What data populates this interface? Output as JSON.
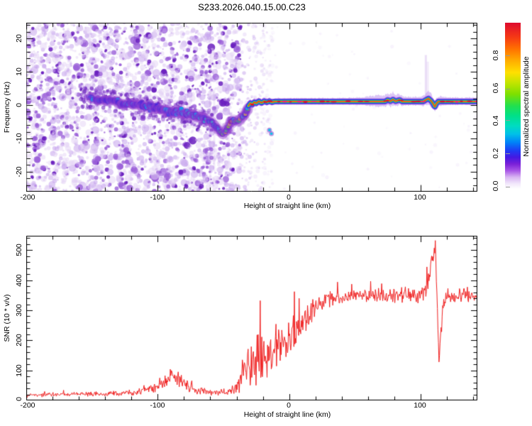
{
  "title": "S233.2026.040.15.00.C23",
  "top_panel": {
    "ylabel": "Frequency (Hz)",
    "xlabel": "Height of straight line (km)",
    "yticks": [
      "20",
      "10",
      "0",
      "-10",
      "-20"
    ],
    "xticks": [
      "-200",
      "-100",
      "0",
      "100"
    ]
  },
  "bottom_panel": {
    "ylabel": "SNR (10 * v/v)",
    "xlabel": "Height of straight line (km)",
    "yticks": [
      "0",
      "100",
      "200",
      "300",
      "400",
      "500"
    ],
    "xticks": [
      "-200",
      "-100",
      "0",
      "100"
    ]
  },
  "colorbar": {
    "label": "Normalized spectral amplitude",
    "ticks": [
      "0.0",
      "0.2",
      "0.4",
      "0.6",
      "0.8"
    ],
    "stops": [
      [
        0.0,
        "#ffffff"
      ],
      [
        0.03,
        "#f2e8fb"
      ],
      [
        0.07,
        "#d9b6f2"
      ],
      [
        0.11,
        "#a855e6"
      ],
      [
        0.15,
        "#7a20d8"
      ],
      [
        0.19,
        "#4418e2"
      ],
      [
        0.23,
        "#1f3cf4"
      ],
      [
        0.28,
        "#0083f8"
      ],
      [
        0.33,
        "#00c0e8"
      ],
      [
        0.38,
        "#00dcc0"
      ],
      [
        0.44,
        "#00e088"
      ],
      [
        0.5,
        "#22e04e"
      ],
      [
        0.57,
        "#7ee000"
      ],
      [
        0.64,
        "#c4e400"
      ],
      [
        0.7,
        "#ffe000"
      ],
      [
        0.77,
        "#ffae00"
      ],
      [
        0.84,
        "#ff7300"
      ],
      [
        0.91,
        "#f63b14"
      ],
      [
        1.0,
        "#de0a2e"
      ]
    ]
  },
  "chart_data": [
    {
      "type": "heatmap",
      "title": "Doppler spectrogram, normalized spectral amplitude",
      "xlabel": "Height of straight line (km)",
      "ylabel": "Frequency (Hz)",
      "x_range": [
        -200,
        143.2
      ],
      "y_range": [
        -26,
        24.7
      ],
      "x_major_ticks": [
        -200,
        -100,
        0,
        100
      ],
      "x_minor_step": 20,
      "y_major_ticks": [
        -20,
        -10,
        0,
        10,
        20
      ],
      "y_minor_step": 2,
      "noise_palette": [
        "#e3d2f6",
        "#c4a2ec",
        "#9a5fd8",
        "#6a1fbe"
      ],
      "noise_dense_to": -37,
      "noise_fade_to": -12,
      "streaks": [
        [
          -60,
          23,
          -25,
          0.1
        ],
        [
          -57,
          5,
          -20,
          0.12
        ],
        [
          -46,
          0,
          -18,
          0.1
        ],
        [
          104,
          15,
          2,
          0.2
        ],
        [
          105.5,
          13,
          1.5,
          0.12
        ]
      ],
      "ridge_path": [
        [
          -152,
          2.2
        ],
        [
          -146,
          1.6
        ],
        [
          -140,
          1.2
        ],
        [
          -134,
          1.4
        ],
        [
          -128,
          0.6
        ],
        [
          -122,
          0.3
        ],
        [
          -116,
          0.1
        ],
        [
          -110,
          -0.4
        ],
        [
          -104,
          -0.8
        ],
        [
          -98,
          -1.3
        ],
        [
          -92,
          -1.7
        ],
        [
          -86,
          -1.9
        ],
        [
          -80,
          -2.4
        ],
        [
          -74,
          -3.0
        ],
        [
          -68,
          -3.7
        ],
        [
          -62,
          -4.4
        ],
        [
          -58,
          -5.4
        ],
        [
          -55,
          -6.8
        ],
        [
          -52,
          -8.0
        ],
        [
          -50,
          -8.6
        ],
        [
          -48,
          -7.6
        ],
        [
          -46,
          -6.2
        ],
        [
          -44,
          -4.9
        ],
        [
          -42,
          -4.5
        ],
        [
          -40,
          -4.8
        ],
        [
          -38,
          -4.3
        ],
        [
          -36,
          -4.0
        ],
        [
          -34,
          -3.2
        ],
        [
          -33,
          -2.4
        ],
        [
          -32,
          -1.4
        ],
        [
          -31,
          -0.5
        ]
      ],
      "ridge_palettes": {
        "left": [
          "#3a1ee0",
          "#2060f0",
          "#00a8f0"
        ],
        "mid": [
          "#2038f0",
          "#00aaf0",
          "#00e0cc"
        ],
        "right": [
          "#00c8f0",
          "#2ce05a",
          "#8ce800",
          "#ffdc00"
        ],
        "red_spot_km": -44,
        "red": "#ff2820"
      },
      "detached_blobs": [
        [
          -15,
          -7.5
        ],
        [
          -13.5,
          -8.6
        ]
      ],
      "flat_line": {
        "from": -31,
        "to": 143.2,
        "freq": 1.05,
        "deviations": [
          [
            -31,
            -1.3
          ],
          [
            -29.5,
            -0.5
          ],
          [
            -28,
            -0.9
          ],
          [
            -26.5,
            -0.2
          ],
          [
            -25,
            -0.5
          ],
          [
            -23,
            0.1
          ],
          [
            -21,
            -0.4
          ],
          [
            -19,
            0.1
          ],
          [
            -17,
            -0.2
          ],
          [
            -15,
            0.1
          ],
          [
            -13,
            -0.2
          ],
          [
            -11,
            0
          ],
          [
            0,
            0
          ],
          [
            40,
            0
          ],
          [
            73,
            0
          ],
          [
            75,
            0.5
          ],
          [
            77,
            0.1
          ],
          [
            79,
            0.6
          ],
          [
            81,
            0.1
          ],
          [
            84,
            0.5
          ],
          [
            86,
            0
          ],
          [
            95,
            0
          ],
          [
            102,
            0
          ],
          [
            104,
            0.5
          ],
          [
            106,
            0.9
          ],
          [
            108,
            0.2
          ],
          [
            109.5,
            -0.6
          ],
          [
            110.8,
            -1.7
          ],
          [
            112,
            -0.6
          ],
          [
            113.5,
            0
          ],
          [
            143.2,
            0
          ]
        ],
        "halo": [
          [
            -31,
            6
          ],
          [
            -20,
            5
          ],
          [
            -5,
            4.5
          ],
          [
            20,
            4.5
          ],
          [
            45,
            5
          ],
          [
            60,
            7
          ],
          [
            70,
            9
          ],
          [
            80,
            10
          ],
          [
            85,
            8
          ],
          [
            92,
            6
          ],
          [
            100,
            7
          ],
          [
            104,
            9
          ],
          [
            107,
            10
          ],
          [
            110,
            9
          ],
          [
            114,
            7
          ],
          [
            125,
            5.5
          ],
          [
            143.2,
            5.5
          ]
        ],
        "layer_colors": [
          "rgba(120,50,216,0.8)",
          "#3418e8",
          "#00a8ec",
          "#22d060",
          "#a8e000",
          "#ff9800",
          "#f01830"
        ],
        "layer_widths": [
          8.5,
          6,
          4.6,
          3.4,
          2.2,
          1.5,
          1.1
        ],
        "dash_colors": [
          "#dc0830",
          "#ff2068"
        ]
      }
    },
    {
      "type": "line",
      "title": "Signal-to-noise ratio profile",
      "xlabel": "Height of straight line (km)",
      "ylabel": "SNR (10 * v/v)",
      "x_range": [
        -200,
        143.2
      ],
      "y_range": [
        0,
        548
      ],
      "x_major_ticks": [
        -200,
        -100,
        0,
        100
      ],
      "x_minor_step": 20,
      "y_major_ticks": [
        0,
        100,
        200,
        300,
        400,
        500
      ],
      "y_minor_step": 20,
      "color": "#f02020",
      "envelope": [
        [
          -200,
          18,
          14
        ],
        [
          -175,
          20,
          14
        ],
        [
          -150,
          21,
          15
        ],
        [
          -130,
          23,
          16
        ],
        [
          -115,
          27,
          20
        ],
        [
          -103,
          40,
          32
        ],
        [
          -96,
          60,
          48
        ],
        [
          -90,
          78,
          62
        ],
        [
          -85,
          68,
          55
        ],
        [
          -78,
          48,
          40
        ],
        [
          -70,
          34,
          26
        ],
        [
          -62,
          27,
          20
        ],
        [
          -54,
          26,
          19
        ],
        [
          -47,
          29,
          22
        ],
        [
          -42,
          38,
          40
        ],
        [
          -38,
          60,
          80
        ],
        [
          -34,
          95,
          130
        ],
        [
          -30,
          120,
          155
        ],
        [
          -26,
          145,
          165
        ],
        [
          -22,
          150,
          175
        ],
        [
          -19,
          135,
          145
        ],
        [
          -16,
          140,
          130
        ],
        [
          -12,
          160,
          120
        ],
        [
          -8,
          175,
          110
        ],
        [
          -4,
          185,
          105
        ],
        [
          0,
          195,
          100
        ],
        [
          4,
          215,
          95
        ],
        [
          8,
          240,
          90
        ],
        [
          12,
          268,
          80
        ],
        [
          16,
          292,
          70
        ],
        [
          20,
          312,
          62
        ],
        [
          26,
          328,
          55
        ],
        [
          33,
          338,
          50
        ],
        [
          42,
          346,
          46
        ],
        [
          55,
          350,
          46
        ],
        [
          70,
          352,
          46
        ],
        [
          85,
          350,
          46
        ],
        [
          97,
          349,
          44
        ],
        [
          102,
          356,
          50
        ],
        [
          105,
          378,
          62
        ],
        [
          107,
          420,
          70
        ],
        [
          109,
          470,
          50
        ],
        [
          110.5,
          500,
          35
        ],
        [
          111.5,
          460,
          60
        ],
        [
          112.5,
          330,
          80
        ],
        [
          113.5,
          190,
          50
        ],
        [
          114.2,
          140,
          25
        ],
        [
          115.5,
          230,
          55
        ],
        [
          117,
          300,
          55
        ],
        [
          119,
          330,
          48
        ],
        [
          123,
          342,
          45
        ],
        [
          130,
          347,
          44
        ],
        [
          140,
          350,
          45
        ],
        [
          143.2,
          350,
          45
        ]
      ],
      "overrides": [
        [
          -21.8,
          332
        ],
        [
          3.8,
          362
        ],
        [
          111.2,
          532
        ],
        [
          111.6,
          470
        ],
        [
          113.9,
          128
        ],
        [
          114.3,
          150
        ]
      ]
    }
  ]
}
